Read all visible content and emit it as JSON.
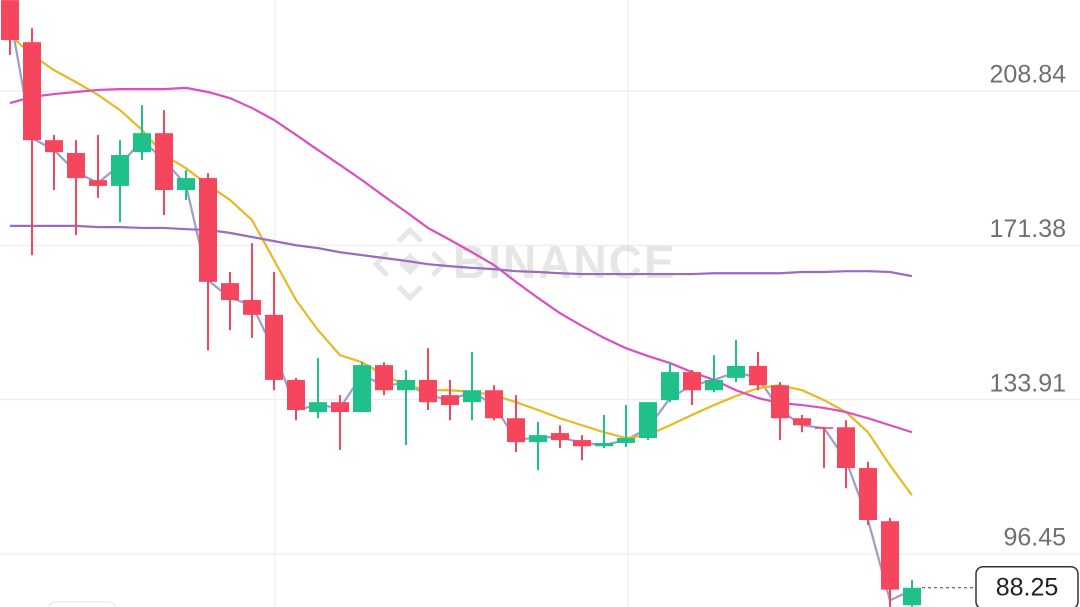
{
  "chart_data": {
    "type": "candlestick",
    "watermark": "BINANCE",
    "categories": [
      null,
      null,
      null,
      null,
      null,
      null,
      null,
      null,
      null,
      null,
      null,
      null,
      null,
      null,
      null,
      null,
      null,
      null,
      null,
      null,
      null,
      null,
      null,
      null,
      null,
      null,
      null,
      null,
      null,
      null,
      null,
      null,
      null,
      null,
      null,
      null,
      null,
      null,
      null,
      null,
      null,
      null
    ],
    "open": [
      230.9,
      220.7,
      196.9,
      193.8,
      187.2,
      185.8,
      194.0,
      198.6,
      184.8,
      187.7,
      162.2,
      158.1,
      154.5,
      138.7,
      130.9,
      133.3,
      130.9,
      142.3,
      136.2,
      138.7,
      135.0,
      133.3,
      136.2,
      129.4,
      123.6,
      125.8,
      124.1,
      122.6,
      123.4,
      124.6,
      133.8,
      140.6,
      136.2,
      139.2,
      142.1,
      137.4,
      129.4,
      127.2,
      127.2,
      117.3,
      104.4,
      84.0
    ],
    "high": [
      230.9,
      224.1,
      198.2,
      196.9,
      198.2,
      196.9,
      205.4,
      204.2,
      189.6,
      188.9,
      164.9,
      171.9,
      164.9,
      139.2,
      144.0,
      135.0,
      143.0,
      143.0,
      141.1,
      146.4,
      138.7,
      145.5,
      137.4,
      135.0,
      128.5,
      127.7,
      125.3,
      130.2,
      132.6,
      133.3,
      143.0,
      141.1,
      144.7,
      148.4,
      145.5,
      138.2,
      130.2,
      127.3,
      128.9,
      118.8,
      105.2,
      90.1
    ],
    "low": [
      217.6,
      169.0,
      184.8,
      173.9,
      182.9,
      177.0,
      192.1,
      178.7,
      182.4,
      145.9,
      150.8,
      148.9,
      136.2,
      128.9,
      129.4,
      121.7,
      130.9,
      135.0,
      122.9,
      131.4,
      128.9,
      128.9,
      128.9,
      121.2,
      116.8,
      122.2,
      119.2,
      122.2,
      122.4,
      124.1,
      133.3,
      132.6,
      135.7,
      138.2,
      136.2,
      124.1,
      126.0,
      117.3,
      112.4,
      103.5,
      83.6,
      83.6
    ],
    "close": [
      221.2,
      196.9,
      194.0,
      187.7,
      185.8,
      193.3,
      198.6,
      184.8,
      187.7,
      162.5,
      158.1,
      154.5,
      138.7,
      131.4,
      133.3,
      130.9,
      142.3,
      136.2,
      138.7,
      133.3,
      132.6,
      136.2,
      129.4,
      123.6,
      125.3,
      124.1,
      122.6,
      123.4,
      124.6,
      133.3,
      140.6,
      136.2,
      138.7,
      142.1,
      137.4,
      129.4,
      127.7,
      127.0,
      117.3,
      104.7,
      87.8,
      88.25
    ],
    "up_color": "#1fc089",
    "down_color": "#f6465d",
    "lines": [
      {
        "color": "#9a9dcf",
        "values": [
          227.3,
          197.4,
          194.5,
          189.2,
          186.5,
          190.9,
          196.9,
          192.1,
          186.0,
          162.9,
          158.6,
          156.9,
          145.9,
          131.4,
          132.6,
          131.9,
          139.9,
          137.4,
          137.9,
          135.0,
          133.8,
          135.8,
          132.6,
          124.1,
          124.8,
          124.8,
          123.4,
          122.9,
          124.1,
          127.0,
          134.3,
          137.4,
          138.7,
          140.6,
          139.2,
          131.4,
          127.7,
          127.0,
          119.2,
          104.7,
          85.2,
          87.7
        ]
      },
      {
        "color": "#e8b923",
        "values": [
          222.4,
          217.6,
          213.9,
          211.0,
          207.9,
          204.2,
          199.4,
          193.3,
          190.1,
          186.0,
          182.4,
          177.5,
          167.8,
          158.1,
          150.8,
          144.7,
          143.0,
          139.9,
          137.4,
          136.2,
          136.2,
          135.8,
          135.0,
          133.3,
          131.4,
          129.4,
          127.7,
          126.0,
          124.6,
          125.3,
          127.7,
          130.2,
          132.6,
          134.8,
          136.7,
          137.4,
          136.2,
          133.8,
          130.9,
          126.0,
          118.0,
          110.7
        ]
      },
      {
        "color": "#d84fc4",
        "values": [
          205.9,
          207.4,
          208.1,
          208.6,
          209.1,
          209.3,
          209.3,
          209.3,
          209.6,
          208.6,
          207.1,
          204.7,
          201.8,
          198.2,
          194.5,
          190.9,
          187.2,
          183.3,
          179.5,
          175.6,
          172.7,
          169.7,
          166.6,
          162.5,
          158.6,
          154.9,
          151.8,
          148.9,
          146.4,
          144.5,
          142.8,
          140.6,
          138.7,
          136.2,
          134.3,
          133.1,
          132.6,
          131.9,
          130.9,
          129.4,
          127.7,
          126.0
        ]
      },
      {
        "color": "#9b6cbd",
        "values": [
          176.1,
          176.1,
          176.1,
          176.1,
          175.8,
          175.8,
          175.6,
          175.6,
          175.3,
          175.1,
          174.4,
          173.4,
          172.4,
          171.4,
          170.7,
          169.7,
          169.0,
          168.3,
          167.6,
          166.8,
          166.3,
          165.9,
          165.6,
          165.1,
          164.9,
          164.6,
          164.4,
          164.4,
          164.4,
          164.4,
          164.4,
          164.4,
          164.6,
          164.6,
          164.6,
          164.6,
          164.9,
          164.9,
          165.1,
          165.1,
          164.9,
          163.9
        ]
      }
    ],
    "ylim": [
      83.58,
      230.93
    ],
    "yticks": [
      96.45,
      133.91,
      171.38,
      208.84
    ],
    "grid": true,
    "last_price": 88.25
  }
}
